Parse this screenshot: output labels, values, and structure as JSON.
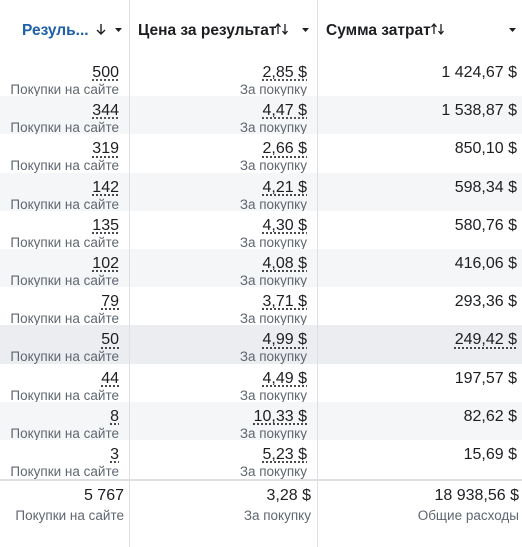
{
  "header": {
    "columns": [
      "Резуль...",
      "Цена за результат",
      "Сумма затрат"
    ]
  },
  "rows": [
    {
      "result": "500",
      "result_type": "Покупки на сайте",
      "cost": "2,85 $",
      "cost_type": "За покупку",
      "spent": "1 424,67 $"
    },
    {
      "result": "344",
      "result_type": "Покупки на сайте",
      "cost": "4,47 $",
      "cost_type": "За покупку",
      "spent": "1 538,87 $"
    },
    {
      "result": "319",
      "result_type": "Покупки на сайте",
      "cost": "2,66 $",
      "cost_type": "За покупку",
      "spent": "850,10 $"
    },
    {
      "result": "142",
      "result_type": "Покупки на сайте",
      "cost": "4,21 $",
      "cost_type": "За покупку",
      "spent": "598,34 $"
    },
    {
      "result": "135",
      "result_type": "Покупки на сайте",
      "cost": "4,30 $",
      "cost_type": "За покупку",
      "spent": "580,76 $"
    },
    {
      "result": "102",
      "result_type": "Покупки на сайте",
      "cost": "4,08 $",
      "cost_type": "За покупку",
      "spent": "416,06 $"
    },
    {
      "result": "79",
      "result_type": "Покупки на сайте",
      "cost": "3,71 $",
      "cost_type": "За покупку",
      "spent": "293,36 $"
    },
    {
      "result": "50",
      "result_type": "Покупки на сайте",
      "cost": "4,99 $",
      "cost_type": "За покупку",
      "spent": "249,42 $"
    },
    {
      "result": "44",
      "result_type": "Покупки на сайте",
      "cost": "4,49 $",
      "cost_type": "За покупку",
      "spent": "197,57 $"
    },
    {
      "result": "8",
      "result_type": "Покупки на сайте",
      "cost": "10,33 $",
      "cost_type": "За покупку",
      "spent": "82,62 $"
    },
    {
      "result": "3",
      "result_type": "Покупки на сайте",
      "cost": "5,23 $",
      "cost_type": "За покупку",
      "spent": "15,69 $"
    }
  ],
  "footer": {
    "result": "5 767",
    "result_type": "Покупки на сайте",
    "cost": "3,28 $",
    "cost_type": "За покупку",
    "spent": "18 938,56 $",
    "spent_type": "Общие расходы"
  }
}
